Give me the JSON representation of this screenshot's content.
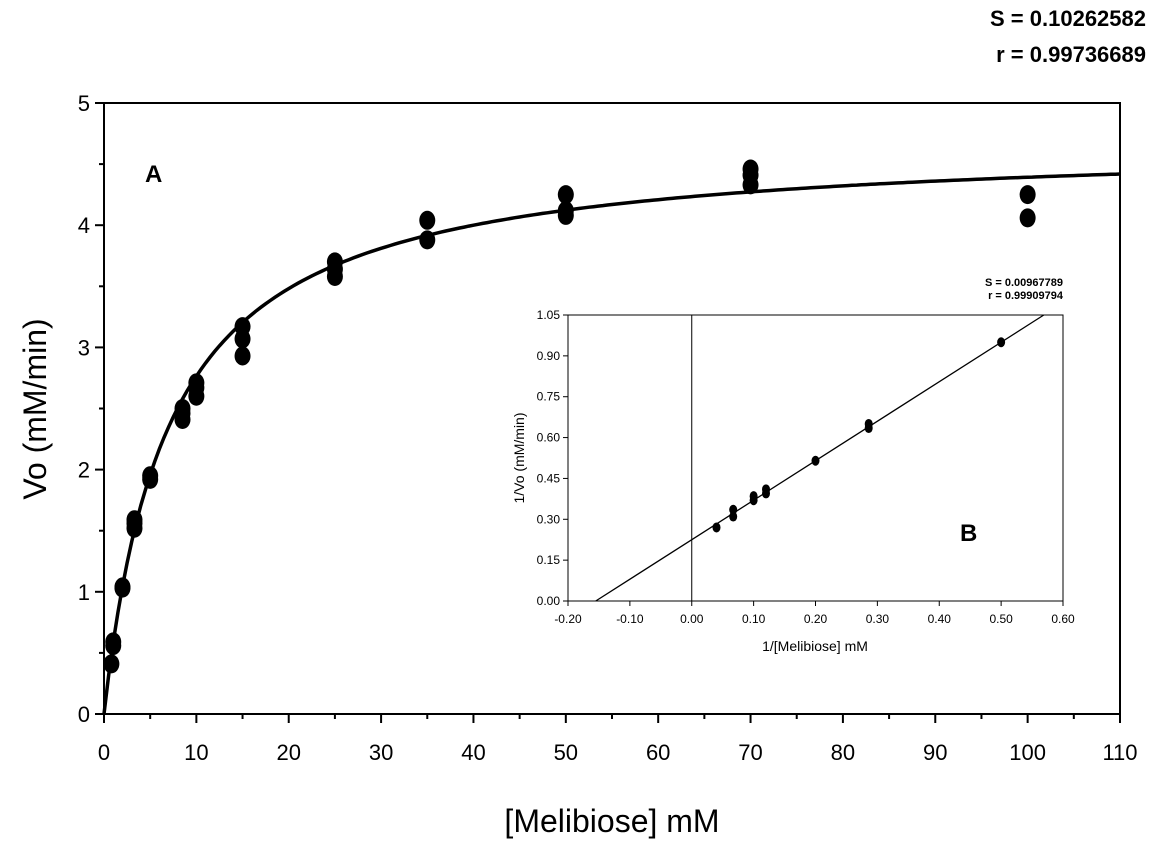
{
  "chart_data": [
    {
      "type": "scatter",
      "panel_label": "A",
      "title": "",
      "xlabel": "[Melibiose] mM",
      "ylabel": "Vo (mM/min)",
      "xlim": [
        0,
        110
      ],
      "ylim": [
        0,
        5
      ],
      "x_ticks": [
        "0",
        "10",
        "20",
        "30",
        "40",
        "50",
        "60",
        "70",
        "80",
        "90",
        "100",
        "110"
      ],
      "y_ticks": [
        "0",
        "1",
        "2",
        "3",
        "4",
        "5"
      ],
      "stats": [
        "S = 0.10262582",
        "r = 0.99736689"
      ],
      "grid": false,
      "series": [
        {
          "type": "scatter",
          "x": [
            0.8,
            1,
            1,
            2,
            2,
            3.3,
            3.3,
            3.3,
            5,
            5,
            8.5,
            8.5,
            8.5,
            10,
            10,
            10,
            15,
            15,
            15,
            25,
            25,
            25,
            35,
            35,
            50,
            50,
            50,
            70,
            70,
            70,
            100,
            100
          ],
          "y": [
            0.41,
            0.56,
            0.59,
            1.03,
            1.04,
            1.52,
            1.56,
            1.59,
            1.92,
            1.95,
            2.41,
            2.46,
            2.5,
            2.6,
            2.67,
            2.71,
            2.93,
            3.07,
            3.17,
            3.58,
            3.64,
            3.7,
            3.88,
            4.04,
            4.08,
            4.12,
            4.25,
            4.33,
            4.41,
            4.46,
            4.06,
            4.25
          ]
        },
        {
          "type": "line",
          "fit": "Michaelis-Menten",
          "Vmax": 4.7,
          "Km": 7.0
        }
      ]
    },
    {
      "type": "scatter",
      "panel_label": "B",
      "title": "",
      "xlabel": "1/[Melibiose] mM",
      "ylabel": "1/Vo (mM/min)",
      "xlim": [
        -0.2,
        0.6
      ],
      "ylim": [
        0,
        1.05
      ],
      "x_ticks": [
        "-0.20",
        "-0.10",
        "0.00",
        "0.10",
        "0.20",
        "0.30",
        "0.40",
        "0.50",
        "0.60"
      ],
      "y_ticks": [
        "0.00",
        "0.15",
        "0.30",
        "0.45",
        "0.60",
        "0.75",
        "0.90",
        "1.05"
      ],
      "stats": [
        "S = 0.00967789",
        "r = 0.99909794"
      ],
      "grid": false,
      "series": [
        {
          "type": "scatter",
          "x": [
            0.04,
            0.067,
            0.067,
            0.1,
            0.1,
            0.12,
            0.12,
            0.2,
            0.286,
            0.286,
            0.5
          ],
          "y": [
            0.27,
            0.31,
            0.335,
            0.37,
            0.385,
            0.395,
            0.41,
            0.515,
            0.635,
            0.65,
            0.95
          ]
        },
        {
          "type": "line",
          "fit": "linear",
          "slope": 1.45,
          "intercept": 0.225
        }
      ]
    }
  ]
}
